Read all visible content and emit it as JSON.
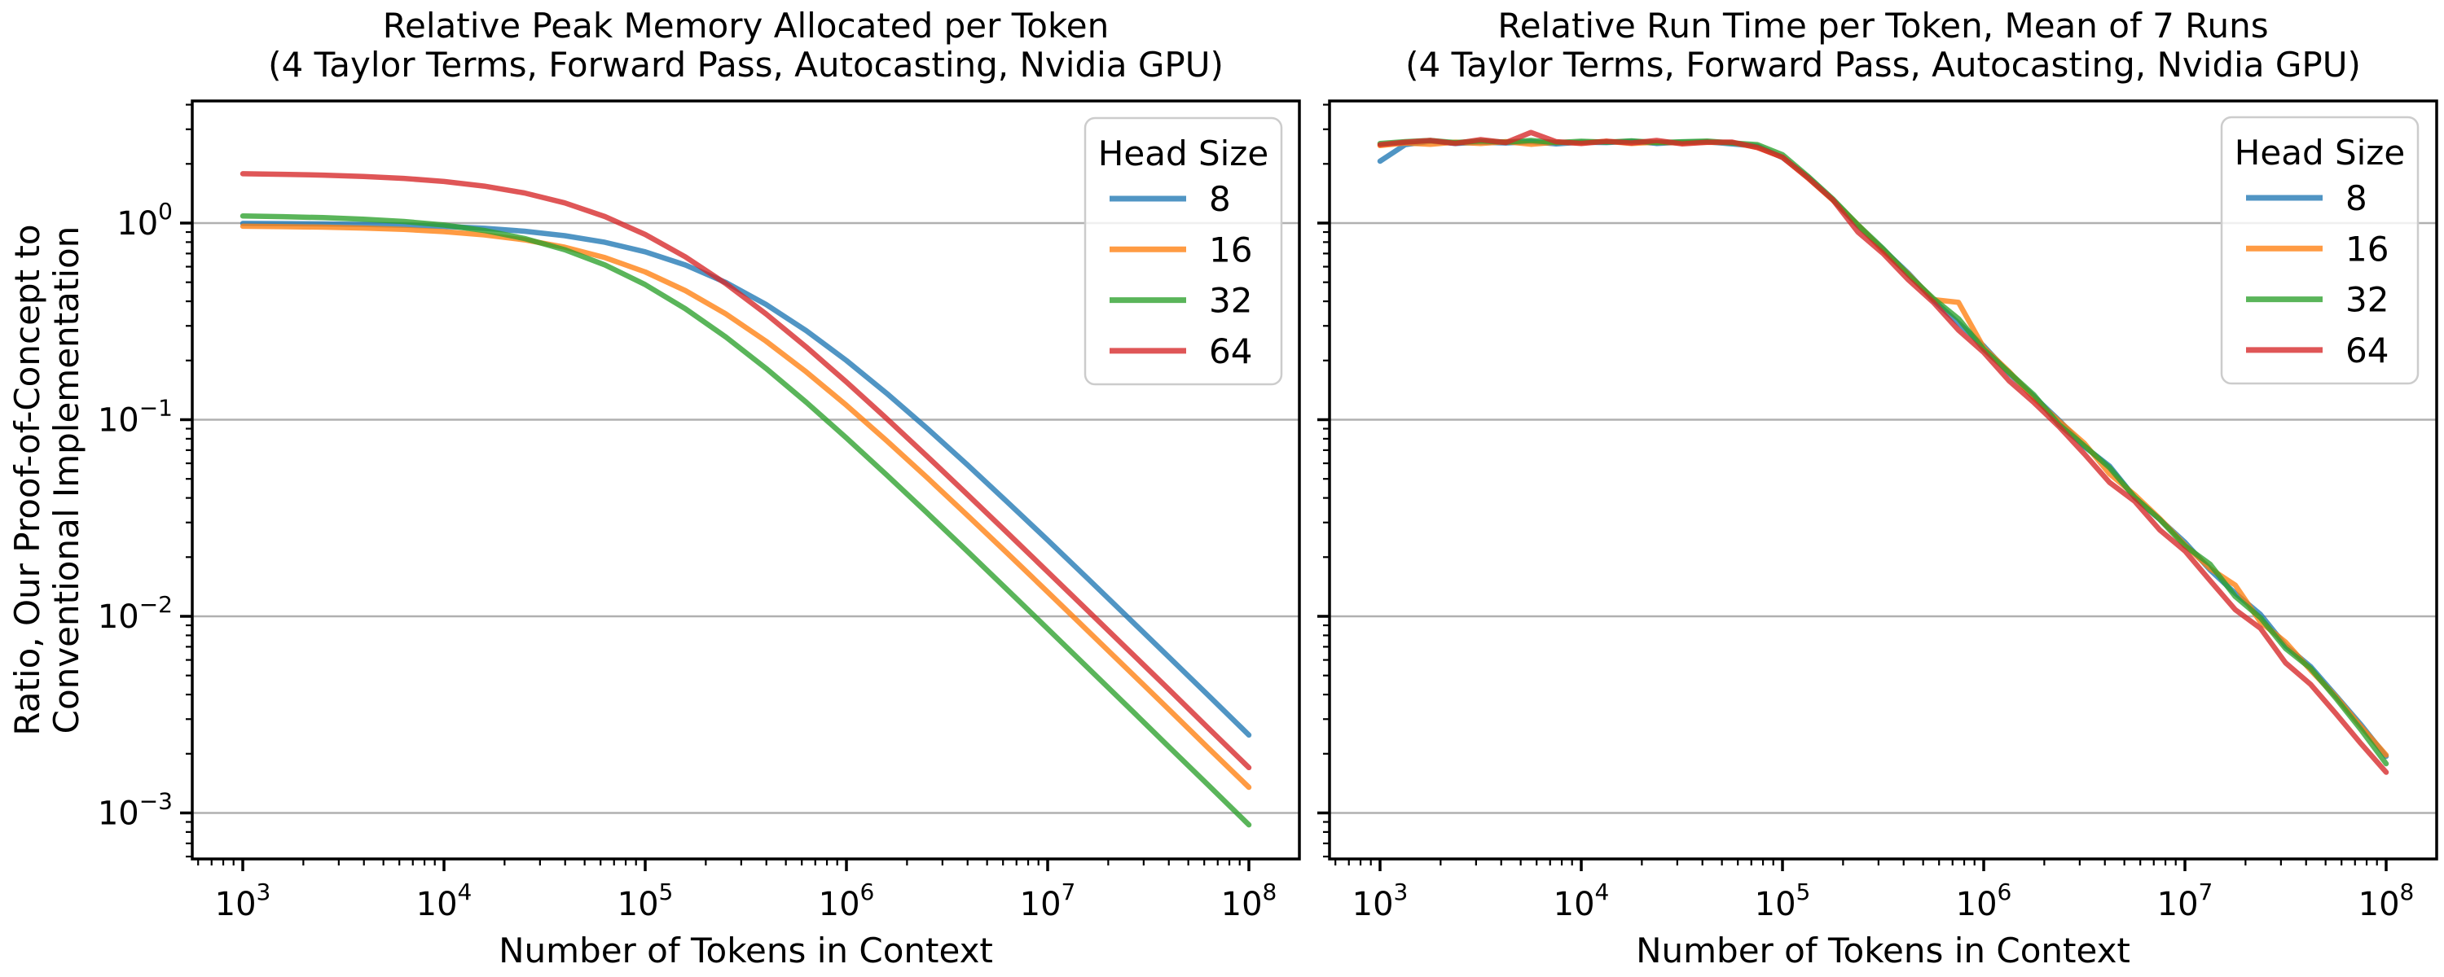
{
  "page": {
    "background": "#ffffff",
    "grid_color": "#b0b0b0",
    "spine_color": "#000000"
  },
  "chart_data": [
    {
      "id": "memory",
      "type": "line",
      "title_lines": [
        "Relative Peak Memory Allocated per Token",
        "(4 Taylor Terms, Forward Pass, Autocasting, Nvidia GPU)"
      ],
      "xlabel": "Number of Tokens in Context",
      "ylabel_lines": [
        "Ratio, Our Proof-of-Concept to",
        "Conventional Implementation"
      ],
      "xscale": "log",
      "yscale": "log",
      "xlim_log": [
        2.749,
        8.251
      ],
      "ylim_log": [
        -3.234,
        0.621
      ],
      "xticks_exp": [
        3,
        4,
        5,
        6,
        7,
        8
      ],
      "yticks_exp": [
        0,
        -1,
        -2,
        -3
      ],
      "grid": "horizontal-major",
      "show_ytick_labels": true,
      "legend": {
        "title": "Head Size",
        "position": "upper right"
      },
      "series": [
        {
          "label": "8",
          "color": "#1f77b4",
          "opacity": 0.78,
          "x": [
            1000,
            1585,
            2512,
            3981,
            6310,
            10000,
            15849,
            25119,
            39811,
            63096,
            100000,
            158489,
            251189,
            398107,
            630957,
            1000000,
            1584893,
            2511886,
            3981072,
            6309573,
            10000000,
            15848932,
            25118864,
            39810717,
            63095734,
            100000000
          ],
          "y": [
            0.996,
            0.9937,
            0.9901,
            0.9843,
            0.9754,
            0.9615,
            0.9404,
            0.9087,
            0.8627,
            0.7985,
            0.7143,
            0.612,
            0.4988,
            0.3858,
            0.2838,
            0.2,
            0.1362,
            0.0905,
            0.0591,
            0.0381,
            0.0244,
            0.01553,
            0.00985,
            0.00624,
            0.00395,
            0.00249
          ]
        },
        {
          "label": "16",
          "color": "#ff7f0e",
          "opacity": 0.78,
          "x": [
            1000,
            1585,
            2512,
            3981,
            6310,
            10000,
            15849,
            25119,
            39811,
            63096,
            100000,
            158489,
            251189,
            398107,
            630957,
            1000000,
            1584893,
            2511886,
            3981072,
            6309573,
            10000000,
            15848932,
            25118864,
            39810717,
            63095734,
            100000000
          ],
          "y": [
            0.9631,
            0.9591,
            0.9528,
            0.943,
            0.9279,
            0.9049,
            0.8707,
            0.8215,
            0.754,
            0.6672,
            0.5642,
            0.4532,
            0.3455,
            0.251,
            0.1751,
            0.1184,
            0.0782,
            0.05086,
            0.03272,
            0.02091,
            0.0133,
            0.00843,
            0.00534,
            0.00338,
            0.00213,
            0.00135
          ]
        },
        {
          "label": "32",
          "color": "#2ca02c",
          "opacity": 0.78,
          "x": [
            1000,
            1585,
            2512,
            3981,
            6310,
            10000,
            15849,
            25119,
            39811,
            63096,
            100000,
            158489,
            251189,
            398107,
            630957,
            1000000,
            1584893,
            2511886,
            3981072,
            6309573,
            10000000,
            15848932,
            25118864,
            39810717,
            63095734,
            100000000
          ],
          "y": [
            1.086,
            1.078,
            1.066,
            1.047,
            1.019,
            0.9767,
            0.9166,
            0.8351,
            0.7319,
            0.6123,
            0.4862,
            0.3665,
            0.2637,
            0.1825,
            0.1227,
            0.08073,
            0.05235,
            0.03362,
            0.02146,
            0.01363,
            0.00864,
            0.00547,
            0.00346,
            0.00218,
            0.00138,
            0.00087
          ]
        },
        {
          "label": "64",
          "color": "#d62728",
          "opacity": 0.78,
          "x": [
            1000,
            1585,
            2512,
            3981,
            6310,
            10000,
            15849,
            25119,
            39811,
            63096,
            100000,
            158489,
            251189,
            398107,
            630957,
            1000000,
            1584893,
            2511886,
            3981072,
            6309573,
            10000000,
            15848932,
            25118864,
            39810717,
            63095734,
            100000000
          ],
          "y": [
            1.781,
            1.77,
            1.753,
            1.727,
            1.687,
            1.628,
            1.541,
            1.422,
            1.267,
            1.079,
            0.875,
            0.6723,
            0.4921,
            0.3453,
            0.2345,
            0.1554,
            0.1013,
            0.06526,
            0.04174,
            0.02656,
            0.01685,
            0.01067,
            0.00675,
            0.00427,
            0.00269,
            0.0017
          ]
        }
      ]
    },
    {
      "id": "runtime",
      "type": "line",
      "title_lines": [
        "Relative Run Time per Token, Mean of 7 Runs",
        "(4 Taylor Terms, Forward Pass, Autocasting, Nvidia GPU)"
      ],
      "xlabel": "Number of Tokens in Context",
      "ylabel_lines": [],
      "xscale": "log",
      "yscale": "log",
      "xlim_log": [
        2.749,
        8.251
      ],
      "ylim_log": [
        -3.234,
        0.621
      ],
      "xticks_exp": [
        3,
        4,
        5,
        6,
        7,
        8
      ],
      "yticks_exp": [
        0,
        -1,
        -2,
        -3
      ],
      "grid": "horizontal-major",
      "show_ytick_labels": false,
      "legend": {
        "title": "Head Size",
        "position": "upper right"
      },
      "series": [
        {
          "label": "8",
          "color": "#1f77b4",
          "opacity": 0.78,
          "x": [
            1000,
            1334,
            1778,
            2371,
            3162,
            4217,
            5623,
            7499,
            10000,
            13335,
            17783,
            23714,
            31623,
            42170,
            56234,
            74989,
            100000,
            133352,
            177828,
            237137,
            316228,
            421697,
            562341,
            749894,
            1000000,
            1333521,
            1778279,
            2371374,
            3162278,
            4216965,
            5623413,
            7498942,
            10000000,
            13335214,
            17782794,
            23713737,
            31622777,
            42169650,
            56234133,
            74989421,
            100000000
          ],
          "y": [
            2.064,
            2.503,
            2.606,
            2.541,
            2.58,
            2.554,
            2.593,
            2.528,
            2.58,
            2.567,
            2.606,
            2.541,
            2.579,
            2.588,
            2.529,
            2.458,
            2.152,
            1.717,
            1.314,
            0.97,
            0.734,
            0.556,
            0.405,
            0.31,
            0.2372,
            0.1727,
            0.1309,
            0.0992,
            0.073,
            0.0581,
            0.0403,
            0.0311,
            0.0238,
            0.0172,
            0.0131,
            0.01024,
            0.00709,
            0.00554,
            0.00395,
            0.00281,
            0.00194
          ]
        },
        {
          "label": "16",
          "color": "#ff7f0e",
          "opacity": 0.78,
          "x": [
            1000,
            1334,
            1778,
            2371,
            3162,
            4217,
            5623,
            7499,
            10000,
            13335,
            17783,
            23714,
            31623,
            42170,
            56234,
            74989,
            100000,
            133352,
            177828,
            237137,
            316228,
            421697,
            562341,
            749894,
            1000000,
            1333521,
            1778279,
            2371374,
            3162278,
            4216965,
            5623413,
            7498942,
            10000000,
            13335214,
            17782794,
            23713737,
            31622777,
            42169650,
            56234133,
            74989421,
            100000000
          ],
          "y": [
            2.477,
            2.554,
            2.516,
            2.58,
            2.541,
            2.593,
            2.516,
            2.58,
            2.554,
            2.606,
            2.541,
            2.58,
            2.553,
            2.575,
            2.568,
            2.421,
            2.163,
            1.7,
            1.308,
            0.98,
            0.723,
            0.551,
            0.408,
            0.395,
            0.2325,
            0.1761,
            0.1283,
            0.0982,
            0.0759,
            0.0531,
            0.0415,
            0.0314,
            0.0231,
            0.0175,
            0.0144,
            0.00936,
            0.00739,
            0.00532,
            0.00391,
            0.00275,
            0.00197
          ]
        },
        {
          "label": "32",
          "color": "#2ca02c",
          "opacity": 0.78,
          "x": [
            1000,
            1334,
            1778,
            2371,
            3162,
            4217,
            5623,
            7499,
            10000,
            13335,
            17783,
            23714,
            31623,
            42170,
            56234,
            74989,
            100000,
            133352,
            177828,
            237137,
            316228,
            421697,
            562341,
            749894,
            1000000,
            1333521,
            1778279,
            2371374,
            3162278,
            4216965,
            5623413,
            7498942,
            10000000,
            13335214,
            17782794,
            23713737,
            31622777,
            42169650,
            56234133,
            74989421,
            100000000
          ],
          "y": [
            2.541,
            2.593,
            2.632,
            2.567,
            2.619,
            2.58,
            2.632,
            2.567,
            2.606,
            2.58,
            2.619,
            2.567,
            2.592,
            2.614,
            2.555,
            2.507,
            2.228,
            1.734,
            1.327,
            0.98,
            0.741,
            0.546,
            0.413,
            0.326,
            0.2279,
            0.1744,
            0.1335,
            0.0943,
            0.0737,
            0.057,
            0.0403,
            0.0311,
            0.0228,
            0.0184,
            0.0126,
            0.00985,
            0.00687,
            0.00543,
            0.00383,
            0.00265,
            0.00178
          ]
        },
        {
          "label": "64",
          "color": "#d62728",
          "opacity": 0.78,
          "x": [
            1000,
            1334,
            1778,
            2371,
            3162,
            4217,
            5623,
            7499,
            10000,
            13335,
            17783,
            23714,
            31623,
            42170,
            56234,
            74989,
            100000,
            133352,
            177828,
            237137,
            316228,
            421697,
            562341,
            749894,
            1000000,
            1333521,
            1778279,
            2371374,
            3162278,
            4216965,
            5623413,
            7498942,
            10000000,
            13335214,
            17782794,
            23713737,
            31622777,
            42169650,
            56234133,
            74989421,
            100000000
          ],
          "y": [
            2.503,
            2.58,
            2.632,
            2.541,
            2.657,
            2.567,
            2.89,
            2.593,
            2.541,
            2.606,
            2.554,
            2.632,
            2.528,
            2.575,
            2.581,
            2.421,
            2.163,
            1.7,
            1.314,
            0.9,
            0.7,
            0.515,
            0.395,
            0.285,
            0.22,
            0.158,
            0.122,
            0.092,
            0.067,
            0.048,
            0.0385,
            0.0275,
            0.0215,
            0.0152,
            0.0108,
            0.0087,
            0.0058,
            0.0045,
            0.0032,
            0.00225,
            0.00161
          ]
        }
      ]
    }
  ]
}
